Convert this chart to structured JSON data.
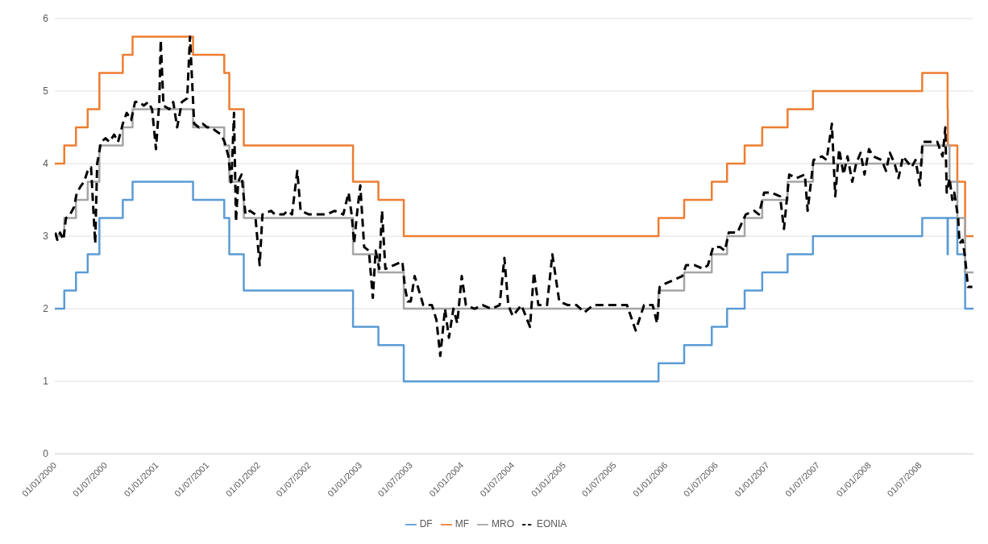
{
  "chart_data": {
    "type": "step",
    "xlim": [
      "2000-01-01",
      "2009-01-09"
    ],
    "xticks": [
      {
        "value": "2000-01-01",
        "label": "01/01/2000"
      },
      {
        "value": "2000-07-01",
        "label": "01/07/2000"
      },
      {
        "value": "2001-01-01",
        "label": "01/01/2001"
      },
      {
        "value": "2001-07-01",
        "label": "01/07/2001"
      },
      {
        "value": "2002-01-01",
        "label": "01/01/2002"
      },
      {
        "value": "2002-07-01",
        "label": "01/07/2002"
      },
      {
        "value": "2003-01-01",
        "label": "01/01/2003"
      },
      {
        "value": "2003-07-01",
        "label": "01/07/2003"
      },
      {
        "value": "2004-01-01",
        "label": "01/01/2004"
      },
      {
        "value": "2004-07-01",
        "label": "01/07/2004"
      },
      {
        "value": "2005-01-01",
        "label": "01/01/2005"
      },
      {
        "value": "2005-07-01",
        "label": "01/07/2005"
      },
      {
        "value": "2006-01-01",
        "label": "01/01/2006"
      },
      {
        "value": "2006-07-01",
        "label": "01/07/2006"
      },
      {
        "value": "2007-01-01",
        "label": "01/01/2007"
      },
      {
        "value": "2007-07-01",
        "label": "01/07/2007"
      },
      {
        "value": "2008-01-01",
        "label": "01/01/2008"
      },
      {
        "value": "2008-07-01",
        "label": "01/07/2008"
      }
    ],
    "ylim": [
      0,
      6
    ],
    "yticks": [
      0,
      1,
      2,
      3,
      4,
      5,
      6
    ],
    "grid": "y",
    "legend": "bottom",
    "series": [
      {
        "name": "DF",
        "color": "#5b9bd5",
        "x": [
          "2000-01-01",
          "2000-02-04",
          "2000-03-17",
          "2000-04-28",
          "2000-06-09",
          "2000-09-01",
          "2000-10-06",
          "2001-05-11",
          "2001-08-31",
          "2001-09-18",
          "2001-11-09",
          "2002-12-06",
          "2003-03-07",
          "2003-06-06",
          "2005-12-06",
          "2006-03-08",
          "2006-06-15",
          "2006-08-09",
          "2006-10-11",
          "2006-12-13",
          "2007-03-14",
          "2007-06-13",
          "2008-07-09",
          "2008-10-08",
          "2008-10-09",
          "2008-11-12",
          "2008-12-10",
          "2009-01-09"
        ],
        "values": [
          2,
          2.25,
          2.5,
          2.75,
          3.25,
          3.5,
          3.75,
          3.5,
          3.25,
          2.75,
          2.25,
          1.75,
          1.5,
          1,
          1.25,
          1.5,
          1.75,
          2,
          2.25,
          2.5,
          2.75,
          3,
          3.25,
          2.75,
          3.25,
          2.75,
          2,
          2
        ]
      },
      {
        "name": "MF",
        "color": "#ed7d31",
        "x": [
          "2000-01-01",
          "2000-02-04",
          "2000-03-17",
          "2000-04-28",
          "2000-06-09",
          "2000-09-01",
          "2000-10-06",
          "2001-05-11",
          "2001-08-31",
          "2001-09-18",
          "2001-11-09",
          "2002-12-06",
          "2003-03-07",
          "2003-06-06",
          "2005-12-06",
          "2006-03-08",
          "2006-06-15",
          "2006-08-09",
          "2006-10-11",
          "2006-12-13",
          "2007-03-14",
          "2007-06-13",
          "2008-07-09",
          "2008-10-08",
          "2008-10-09",
          "2008-11-12",
          "2008-12-10",
          "2009-01-09"
        ],
        "values": [
          4,
          4.25,
          4.5,
          4.75,
          5.25,
          5.5,
          5.75,
          5.5,
          5.25,
          4.75,
          4.25,
          3.75,
          3.5,
          3,
          3.25,
          3.5,
          3.75,
          4,
          4.25,
          4.5,
          4.75,
          5,
          5.25,
          4.75,
          4.25,
          3.75,
          3,
          3
        ]
      },
      {
        "name": "MRO",
        "color": "#a5a5a5",
        "x": [
          "2000-01-01",
          "2000-02-04",
          "2000-03-17",
          "2000-04-28",
          "2000-06-09",
          "2000-09-01",
          "2000-10-06",
          "2001-05-11",
          "2001-08-31",
          "2001-09-18",
          "2001-11-09",
          "2002-12-06",
          "2003-03-07",
          "2003-06-06",
          "2005-12-06",
          "2006-03-08",
          "2006-06-15",
          "2006-08-09",
          "2006-10-11",
          "2006-12-13",
          "2007-03-14",
          "2007-06-13",
          "2008-07-09",
          "2008-10-15",
          "2008-11-12",
          "2008-12-10",
          "2009-01-09"
        ],
        "values": [
          3,
          3.25,
          3.5,
          3.75,
          4.25,
          4.5,
          4.75,
          4.5,
          4.25,
          3.75,
          3.25,
          2.75,
          2.5,
          2,
          2.25,
          2.5,
          2.75,
          3,
          3.25,
          3.5,
          3.75,
          4,
          4.25,
          3.75,
          3.25,
          2.5,
          2.5
        ]
      },
      {
        "name": "EONIA",
        "type": "line",
        "color": "#000000",
        "line_style": "dashed",
        "x": [
          "2000-01-03",
          "2000-01-10",
          "2000-01-20",
          "2000-02-01",
          "2000-02-10",
          "2000-02-25",
          "2000-03-10",
          "2000-03-20",
          "2000-04-05",
          "2000-04-15",
          "2000-04-28",
          "2000-05-10",
          "2000-05-25",
          "2000-06-01",
          "2000-06-15",
          "2000-07-01",
          "2000-07-15",
          "2000-08-01",
          "2000-08-15",
          "2000-09-01",
          "2000-09-15",
          "2000-10-01",
          "2000-10-15",
          "2000-11-01",
          "2000-11-15",
          "2000-12-01",
          "2000-12-15",
          "2000-12-29",
          "2001-01-10",
          "2001-01-15",
          "2001-01-25",
          "2001-02-15",
          "2001-03-01",
          "2001-03-15",
          "2001-04-01",
          "2001-04-20",
          "2001-04-30",
          "2001-05-15",
          "2001-06-01",
          "2001-06-15",
          "2001-07-01",
          "2001-07-15",
          "2001-08-01",
          "2001-08-20",
          "2001-09-01",
          "2001-09-15",
          "2001-09-25",
          "2001-10-05",
          "2001-10-12",
          "2001-10-20",
          "2001-11-01",
          "2001-11-15",
          "2001-12-01",
          "2001-12-20",
          "2002-01-05",
          "2002-01-15",
          "2002-02-15",
          "2002-03-01",
          "2002-04-01",
          "2002-04-15",
          "2002-05-01",
          "2002-05-20",
          "2002-06-01",
          "2002-07-01",
          "2002-08-01",
          "2002-09-01",
          "2002-10-01",
          "2002-11-01",
          "2002-11-20",
          "2002-12-01",
          "2002-12-10",
          "2002-12-20",
          "2003-01-01",
          "2003-01-15",
          "2003-02-01",
          "2003-02-15",
          "2003-02-25",
          "2003-03-10",
          "2003-03-20",
          "2003-04-01",
          "2003-05-01",
          "2003-06-01",
          "2003-06-10",
          "2003-06-20",
          "2003-07-01",
          "2003-07-15",
          "2003-08-15",
          "2003-09-15",
          "2003-10-01",
          "2003-10-15",
          "2003-11-01",
          "2003-11-15",
          "2003-12-01",
          "2003-12-15",
          "2003-12-31",
          "2004-01-15",
          "2004-02-15",
          "2004-03-15",
          "2004-04-15",
          "2004-05-15",
          "2004-06-01",
          "2004-06-15",
          "2004-07-01",
          "2004-08-01",
          "2004-09-01",
          "2004-09-15",
          "2004-10-01",
          "2004-11-01",
          "2004-11-20",
          "2004-12-15",
          "2005-01-15",
          "2005-02-15",
          "2005-03-15",
          "2005-04-15",
          "2005-05-15",
          "2005-06-15",
          "2005-07-15",
          "2005-08-15",
          "2005-09-15",
          "2005-10-15",
          "2005-11-15",
          "2005-12-01",
          "2005-12-10",
          "2006-01-01",
          "2006-02-01",
          "2006-03-01",
          "2006-03-15",
          "2006-04-15",
          "2006-05-15",
          "2006-06-01",
          "2006-06-20",
          "2006-07-15",
          "2006-08-01",
          "2006-08-15",
          "2006-09-15",
          "2006-10-15",
          "2006-11-15",
          "2006-12-01",
          "2006-12-20",
          "2007-01-15",
          "2007-02-15",
          "2007-03-01",
          "2007-03-20",
          "2007-04-15",
          "2007-05-15",
          "2007-05-25",
          "2007-06-15",
          "2007-07-15",
          "2007-08-01",
          "2007-08-20",
          "2007-09-01",
          "2007-09-15",
          "2007-10-01",
          "2007-10-15",
          "2007-11-01",
          "2007-11-15",
          "2007-12-01",
          "2007-12-15",
          "2007-12-31",
          "2008-01-15",
          "2008-02-15",
          "2008-03-01",
          "2008-03-15",
          "2008-04-01",
          "2008-04-15",
          "2008-05-01",
          "2008-06-01",
          "2008-06-15",
          "2008-07-01",
          "2008-07-10",
          "2008-08-01",
          "2008-09-01",
          "2008-09-20",
          "2008-09-30",
          "2008-10-05",
          "2008-10-15",
          "2008-10-25",
          "2008-11-01",
          "2008-11-15",
          "2008-11-20",
          "2008-12-01",
          "2008-12-10",
          "2008-12-20",
          "2009-01-05"
        ],
        "values": [
          3.05,
          2.95,
          3.05,
          2.95,
          3.25,
          3.3,
          3.4,
          3.6,
          3.7,
          3.75,
          3.9,
          3.95,
          2.9,
          4.0,
          4.3,
          4.35,
          4.3,
          4.4,
          4.3,
          4.55,
          4.7,
          4.6,
          4.85,
          4.85,
          4.8,
          4.85,
          4.75,
          4.2,
          4.85,
          5.7,
          4.8,
          4.75,
          4.85,
          4.5,
          4.85,
          4.9,
          5.75,
          4.55,
          4.5,
          4.55,
          4.5,
          4.5,
          4.45,
          4.4,
          4.3,
          4.1,
          3.7,
          4.7,
          3.2,
          3.75,
          3.85,
          3.3,
          3.35,
          3.3,
          2.6,
          3.3,
          3.35,
          3.3,
          3.3,
          3.35,
          3.3,
          3.9,
          3.35,
          3.3,
          3.3,
          3.3,
          3.35,
          3.3,
          3.6,
          3.3,
          2.9,
          3.3,
          3.7,
          2.85,
          2.8,
          2.15,
          2.8,
          2.55,
          3.35,
          2.55,
          2.6,
          2.65,
          2.3,
          2.1,
          2.1,
          2.45,
          2.05,
          2.05,
          1.85,
          1.35,
          2.0,
          1.6,
          2.0,
          1.8,
          2.45,
          2.05,
          2.0,
          2.05,
          2.0,
          2.05,
          2.7,
          2.05,
          1.9,
          2.05,
          1.75,
          2.5,
          2.05,
          2.05,
          2.75,
          2.1,
          2.05,
          2.05,
          1.95,
          2.05,
          2.05,
          2.05,
          2.05,
          2.05,
          1.7,
          2.05,
          2.05,
          1.8,
          2.3,
          2.35,
          2.4,
          2.45,
          2.6,
          2.6,
          2.55,
          2.6,
          2.85,
          2.85,
          2.8,
          3.05,
          3.05,
          3.3,
          3.35,
          3.3,
          3.6,
          3.6,
          3.55,
          3.1,
          3.85,
          3.8,
          3.85,
          3.35,
          4.05,
          4.1,
          4.05,
          4.55,
          3.55,
          4.2,
          3.85,
          4.1,
          3.75,
          4.0,
          4.15,
          3.85,
          4.2,
          4.1,
          4.05,
          3.9,
          4.15,
          4.0,
          3.8,
          4.1,
          3.95,
          4.05,
          3.7,
          4.3,
          4.3,
          4.3,
          4.1,
          4.5,
          3.6,
          3.8,
          3.5,
          3.6,
          3.25,
          2.9,
          2.95,
          2.7,
          2.3,
          2.3
        ]
      }
    ]
  }
}
